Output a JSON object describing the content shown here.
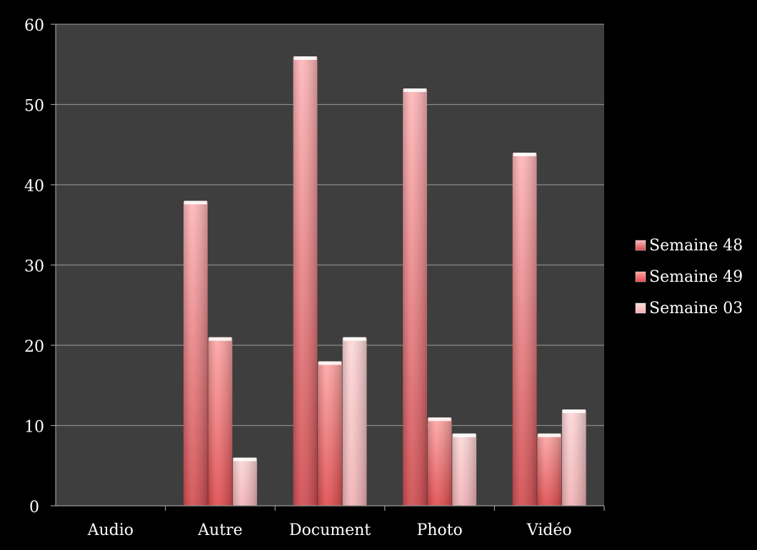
{
  "chart_data": {
    "type": "bar",
    "title": "",
    "xlabel": "",
    "ylabel": "",
    "categories": [
      "Audio",
      "Autre",
      "Document",
      "Photo",
      "Vidéo"
    ],
    "series": [
      {
        "name": "Semaine 48",
        "values": [
          0,
          38,
          56,
          52,
          44
        ],
        "color": "#d14a4e",
        "top_color": "#ffb6b8"
      },
      {
        "name": "Semaine 49",
        "values": [
          0,
          21,
          18,
          11,
          9
        ],
        "color": "#e04a4c",
        "top_color": "#ffa6a6"
      },
      {
        "name": "Semaine 03",
        "values": [
          0,
          6,
          21,
          9,
          12
        ],
        "color": "#f2b2b6",
        "top_color": "#ffd8d8"
      }
    ],
    "ylim": [
      0,
      60
    ],
    "yticks": [
      0,
      10,
      20,
      30,
      40,
      50,
      60
    ],
    "grid": true,
    "legend_position": "right",
    "colors": {
      "page_background": "#000000",
      "plot_background": "#3e3e3e",
      "gridline": "#8c8c8c",
      "axis": "#9a9a9a",
      "text": "#ffffff"
    }
  }
}
